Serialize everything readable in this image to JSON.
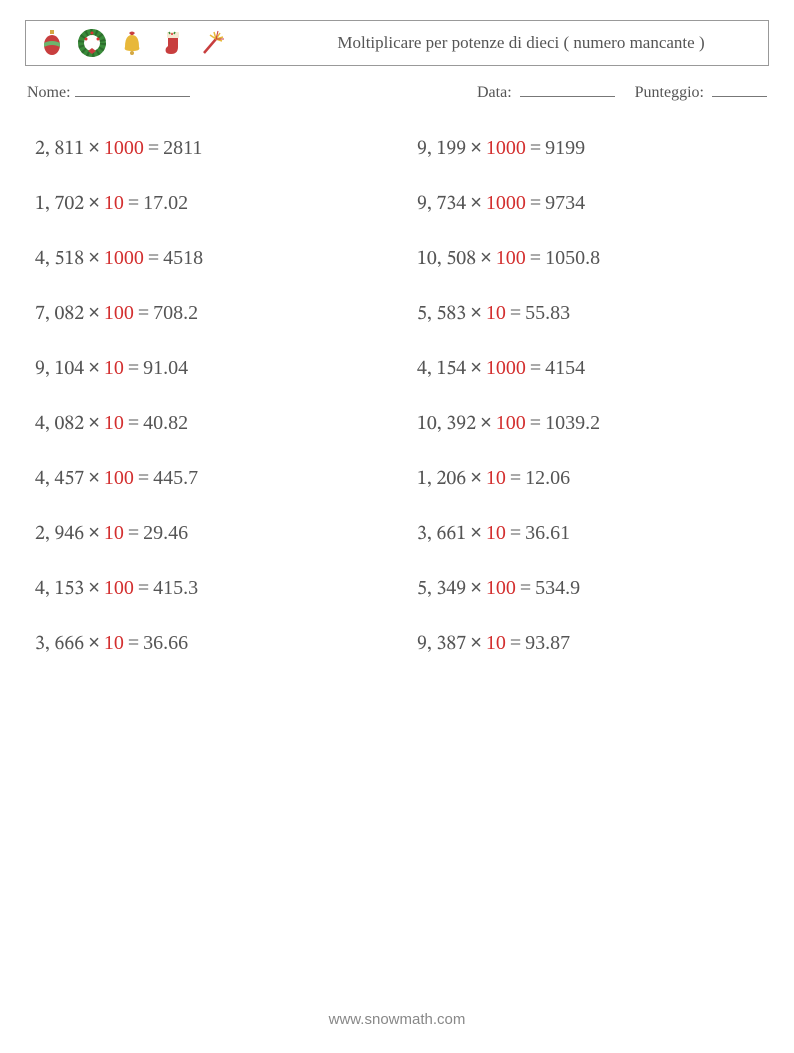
{
  "header": {
    "title": "Moltiplicare per potenze di dieci ( numero mancante )",
    "icons": [
      {
        "name": "ornament-icon",
        "colors": {
          "top": "#d4a843",
          "body": "#c83e3e",
          "stripe": "#6db56d"
        }
      },
      {
        "name": "wreath-icon",
        "colors": {
          "leaf": "#3a8c3a",
          "berry": "#d33",
          "bow": "#c83e3e"
        }
      },
      {
        "name": "bell-icon",
        "colors": {
          "body": "#e8b83a",
          "bow": "#c83e3e"
        }
      },
      {
        "name": "stocking-icon",
        "colors": {
          "body": "#c83e3e",
          "cuff": "#f5e9d3",
          "holly": "#3a8c3a"
        }
      },
      {
        "name": "firework-icon",
        "colors": {
          "stick": "#c83e3e",
          "spark": "#e8b83a"
        }
      }
    ]
  },
  "info": {
    "name_label": "Nome:",
    "date_label": "Data:",
    "score_label": "Punteggio:"
  },
  "style": {
    "answer_color": "#d32f2f",
    "text_color": "#555555",
    "fontsize_problem": 20,
    "fontsize_title": 17,
    "fontsize_info": 16,
    "background_color": "#ffffff",
    "times_symbol": "×"
  },
  "problems": {
    "left": [
      {
        "a": "2, 811",
        "b": "1000",
        "r": "2811"
      },
      {
        "a": "1, 702",
        "b": "10",
        "r": "17.02"
      },
      {
        "a": "4, 518",
        "b": "1000",
        "r": "4518"
      },
      {
        "a": "7, 082",
        "b": "100",
        "r": "708.2"
      },
      {
        "a": "9, 104",
        "b": "10",
        "r": "91.04"
      },
      {
        "a": "4, 082",
        "b": "10",
        "r": "40.82"
      },
      {
        "a": "4, 457",
        "b": "100",
        "r": "445.7"
      },
      {
        "a": "2, 946",
        "b": "10",
        "r": "29.46"
      },
      {
        "a": "4, 153",
        "b": "100",
        "r": "415.3"
      },
      {
        "a": "3, 666",
        "b": "10",
        "r": "36.66"
      }
    ],
    "right": [
      {
        "a": "9, 199",
        "b": "1000",
        "r": "9199"
      },
      {
        "a": "9, 734",
        "b": "1000",
        "r": "9734"
      },
      {
        "a": "10, 508",
        "b": "100",
        "r": "1050.8"
      },
      {
        "a": "5, 583",
        "b": "10",
        "r": "55.83"
      },
      {
        "a": "4, 154",
        "b": "1000",
        "r": "4154"
      },
      {
        "a": "10, 392",
        "b": "100",
        "r": "1039.2"
      },
      {
        "a": "1, 206",
        "b": "10",
        "r": "12.06"
      },
      {
        "a": "3, 661",
        "b": "10",
        "r": "36.61"
      },
      {
        "a": "5, 349",
        "b": "100",
        "r": "534.9"
      },
      {
        "a": "9, 387",
        "b": "10",
        "r": "93.87"
      }
    ]
  },
  "footer": {
    "url": "www.snowmath.com"
  }
}
